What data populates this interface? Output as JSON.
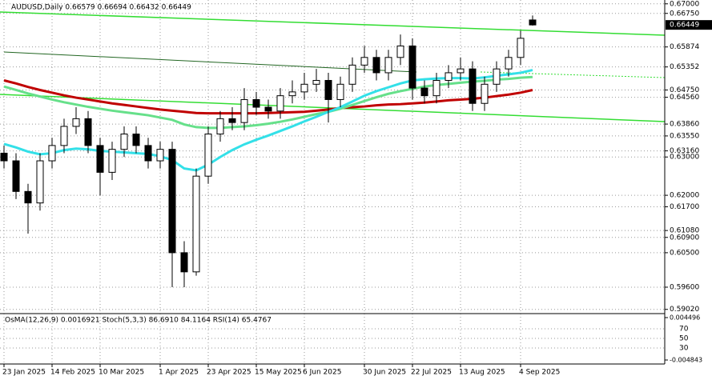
{
  "chart_data": {
    "type": "candlestick",
    "title": "AUDUSD,Daily  0.66579 0.66694 0.66432 0.66449",
    "categories": [
      "23 Jan 2025",
      null,
      null,
      null,
      "14 Feb 2025",
      null,
      null,
      null,
      "10 Mar 2025",
      null,
      null,
      null,
      null,
      "1 Apr 2025",
      null,
      null,
      null,
      "23 Apr 2025",
      null,
      null,
      null,
      "15 May 2025",
      null,
      null,
      null,
      "6 Jun 2025",
      null,
      null,
      null,
      null,
      "30 Jun 2025",
      null,
      null,
      null,
      "22 Jul 2025",
      null,
      null,
      null,
      "13 Aug 2025",
      null,
      null,
      null,
      null,
      "4 Sep 2025",
      null
    ],
    "open": [
      0.631,
      0.629,
      0.621,
      0.618,
      0.629,
      0.633,
      0.638,
      0.64,
      0.633,
      0.626,
      0.632,
      0.636,
      0.633,
      0.629,
      0.632,
      0.605,
      0.6,
      0.625,
      0.636,
      0.64,
      0.639,
      0.645,
      0.643,
      0.642,
      0.646,
      0.647,
      0.649,
      0.65,
      0.645,
      0.649,
      0.654,
      0.656,
      0.652,
      0.656,
      0.659,
      0.648,
      0.646,
      0.65,
      0.652,
      0.653,
      0.644,
      0.649,
      0.653,
      0.656,
      0.66579
    ],
    "high": [
      0.633,
      0.631,
      0.623,
      0.631,
      0.635,
      0.64,
      0.643,
      0.642,
      0.635,
      0.634,
      0.638,
      0.638,
      0.635,
      0.634,
      0.634,
      0.608,
      0.627,
      0.638,
      0.642,
      0.643,
      0.648,
      0.647,
      0.645,
      0.648,
      0.65,
      0.652,
      0.653,
      0.652,
      0.651,
      0.656,
      0.659,
      0.658,
      0.658,
      0.662,
      0.661,
      0.65,
      0.652,
      0.654,
      0.656,
      0.655,
      0.651,
      0.655,
      0.658,
      0.663,
      0.66694
    ],
    "low": [
      0.627,
      0.619,
      0.61,
      0.616,
      0.627,
      0.631,
      0.636,
      0.631,
      0.62,
      0.624,
      0.63,
      0.631,
      0.627,
      0.627,
      0.596,
      0.596,
      0.599,
      0.623,
      0.634,
      0.637,
      0.637,
      0.641,
      0.64,
      0.64,
      0.644,
      0.645,
      0.647,
      0.639,
      0.643,
      0.647,
      0.652,
      0.65,
      0.65,
      0.654,
      0.645,
      0.644,
      0.644,
      0.648,
      0.65,
      0.642,
      0.642,
      0.647,
      0.651,
      0.654,
      0.66432
    ],
    "close": [
      0.629,
      0.621,
      0.618,
      0.629,
      0.633,
      0.638,
      0.64,
      0.633,
      0.626,
      0.632,
      0.636,
      0.633,
      0.629,
      0.632,
      0.605,
      0.6,
      0.625,
      0.636,
      0.64,
      0.639,
      0.645,
      0.643,
      0.642,
      0.646,
      0.647,
      0.649,
      0.65,
      0.645,
      0.649,
      0.654,
      0.656,
      0.652,
      0.656,
      0.659,
      0.648,
      0.646,
      0.65,
      0.652,
      0.653,
      0.644,
      0.649,
      0.653,
      0.656,
      0.661,
      0.66449
    ],
    "moving_averages": [
      {
        "color": "#c00000",
        "values": [
          0.65,
          0.6492,
          0.6483,
          0.6475,
          0.6468,
          0.6461,
          0.6455,
          0.645,
          0.6445,
          0.644,
          0.6436,
          0.6432,
          0.6428,
          0.6424,
          0.6421,
          0.6418,
          0.6415,
          0.6414,
          0.6414,
          0.6414,
          0.6414,
          0.6414,
          0.6415,
          0.6416,
          0.6417,
          0.6418,
          0.6421,
          0.6424,
          0.6428,
          0.643,
          0.6432,
          0.6435,
          0.6437,
          0.6438,
          0.644,
          0.6442,
          0.6445,
          0.6448,
          0.645,
          0.6452,
          0.6455,
          0.6459,
          0.6463,
          0.6468,
          0.6475
        ]
      },
      {
        "color": "#66e08a",
        "values": [
          0.6484,
          0.6475,
          0.6466,
          0.6458,
          0.645,
          0.6443,
          0.6437,
          0.6431,
          0.6426,
          0.6421,
          0.6417,
          0.6413,
          0.6409,
          0.6403,
          0.6397,
          0.6385,
          0.6378,
          0.6376,
          0.6376,
          0.6378,
          0.638,
          0.6383,
          0.6387,
          0.6392,
          0.6398,
          0.6405,
          0.6412,
          0.6418,
          0.6426,
          0.6436,
          0.6446,
          0.6456,
          0.6465,
          0.6472,
          0.6478,
          0.6484,
          0.6488,
          0.6491,
          0.6494,
          0.6497,
          0.6499,
          0.6502,
          0.6504,
          0.6507,
          0.6509
        ]
      },
      {
        "color": "#33e0e8",
        "values": [
          0.6334,
          0.6325,
          0.6314,
          0.6307,
          0.631,
          0.6318,
          0.6322,
          0.632,
          0.6316,
          0.6314,
          0.6312,
          0.631,
          0.6308,
          0.6302,
          0.6292,
          0.627,
          0.6265,
          0.628,
          0.63,
          0.6318,
          0.6333,
          0.6345,
          0.6356,
          0.6368,
          0.638,
          0.6393,
          0.6405,
          0.6418,
          0.643,
          0.6445,
          0.646,
          0.6472,
          0.6482,
          0.6492,
          0.65,
          0.6503,
          0.6505,
          0.6506,
          0.6506,
          0.6505,
          0.6508,
          0.6512,
          0.6516,
          0.652,
          0.6527
        ]
      }
    ],
    "ylim": [
      0.5891,
      0.671
    ],
    "yticks": [
      {
        "value": 0.67,
        "label": "0.67000"
      },
      {
        "value": 0.6675,
        "label": "0.66750"
      },
      {
        "value": 0.65874,
        "label": "0.65874"
      },
      {
        "value": 0.65352,
        "label": "0.65352"
      },
      {
        "value": 0.6475,
        "label": "0.64750"
      },
      {
        "value": 0.6456,
        "label": "0.64560"
      },
      {
        "value": 0.6386,
        "label": "0.63860"
      },
      {
        "value": 0.6355,
        "label": "0.63550"
      },
      {
        "value": 0.6316,
        "label": "0.63160"
      },
      {
        "value": 0.63,
        "label": "0.63000"
      },
      {
        "value": 0.62,
        "label": "0.62000"
      },
      {
        "value": 0.617,
        "label": "0.61700"
      },
      {
        "value": 0.6108,
        "label": "0.61080"
      },
      {
        "value": 0.609,
        "label": "0.60900"
      },
      {
        "value": 0.605,
        "label": "0.60500"
      },
      {
        "value": 0.596,
        "label": "0.59600"
      },
      {
        "value": 0.5902,
        "label": "0.59020"
      }
    ],
    "current_price": {
      "value": 0.66449,
      "label": "0.66449"
    },
    "grid": true,
    "indicator_panel": {
      "title": "OsMA(12,26,9) 0.0016921  Stoch(5,3,3) 86.6910 84.1164  RSI(14) 65.4767",
      "osma_lim": [
        -0.00537,
        0.0052
      ],
      "osma_ticks": [
        0.004496,
        -0.004843
      ],
      "oscillator_lim": [
        0,
        100
      ],
      "oscillator_ticks": [
        70,
        50,
        30
      ]
    }
  }
}
